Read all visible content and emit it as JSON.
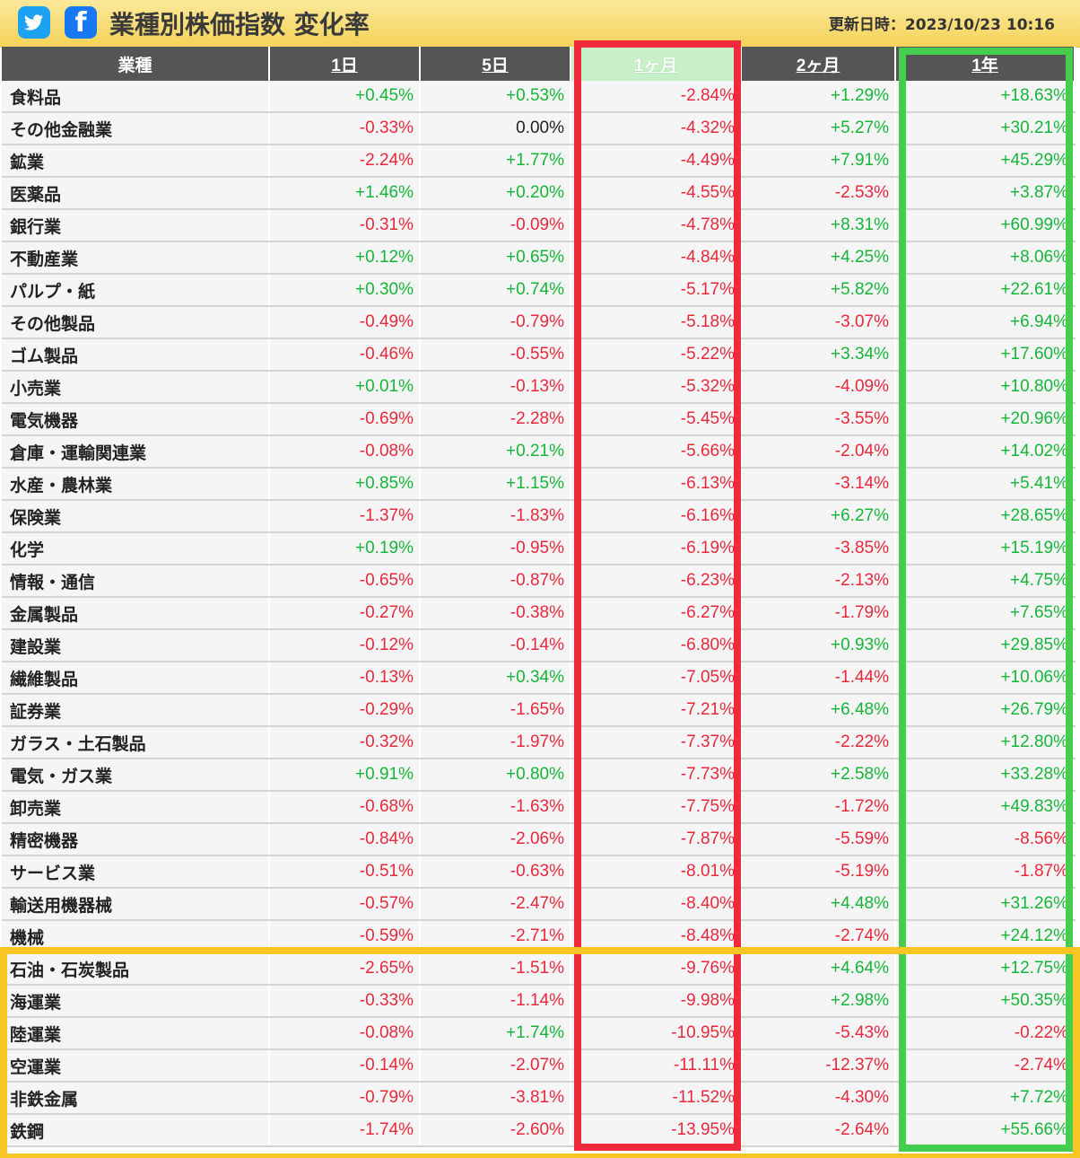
{
  "header": {
    "title": "業種別株価指数 変化率",
    "updated": "更新日時：2023/10/23 10:16"
  },
  "table": {
    "columns": [
      "業種",
      "1日",
      "5日",
      "1ヶ月",
      "2ヶ月",
      "1年"
    ],
    "active_sort_column": "1ヶ月",
    "rows": [
      [
        "食料品",
        "+0.45%",
        "+0.53%",
        "-2.84%",
        "+1.29%",
        "+18.63%"
      ],
      [
        "その他金融業",
        "-0.33%",
        "0.00%",
        "-4.32%",
        "+5.27%",
        "+30.21%"
      ],
      [
        "鉱業",
        "-2.24%",
        "+1.77%",
        "-4.49%",
        "+7.91%",
        "+45.29%"
      ],
      [
        "医薬品",
        "+1.46%",
        "+0.20%",
        "-4.55%",
        "-2.53%",
        "+3.87%"
      ],
      [
        "銀行業",
        "-0.31%",
        "-0.09%",
        "-4.78%",
        "+8.31%",
        "+60.99%"
      ],
      [
        "不動産業",
        "+0.12%",
        "+0.65%",
        "-4.84%",
        "+4.25%",
        "+8.06%"
      ],
      [
        "パルプ・紙",
        "+0.30%",
        "+0.74%",
        "-5.17%",
        "+5.82%",
        "+22.61%"
      ],
      [
        "その他製品",
        "-0.49%",
        "-0.79%",
        "-5.18%",
        "-3.07%",
        "+6.94%"
      ],
      [
        "ゴム製品",
        "-0.46%",
        "-0.55%",
        "-5.22%",
        "+3.34%",
        "+17.60%"
      ],
      [
        "小売業",
        "+0.01%",
        "-0.13%",
        "-5.32%",
        "-4.09%",
        "+10.80%"
      ],
      [
        "電気機器",
        "-0.69%",
        "-2.28%",
        "-5.45%",
        "-3.55%",
        "+20.96%"
      ],
      [
        "倉庫・運輸関連業",
        "-0.08%",
        "+0.21%",
        "-5.66%",
        "-2.04%",
        "+14.02%"
      ],
      [
        "水産・農林業",
        "+0.85%",
        "+1.15%",
        "-6.13%",
        "-3.14%",
        "+5.41%"
      ],
      [
        "保険業",
        "-1.37%",
        "-1.83%",
        "-6.16%",
        "+6.27%",
        "+28.65%"
      ],
      [
        "化学",
        "+0.19%",
        "-0.95%",
        "-6.19%",
        "-3.85%",
        "+15.19%"
      ],
      [
        "情報・通信",
        "-0.65%",
        "-0.87%",
        "-6.23%",
        "-2.13%",
        "+4.75%"
      ],
      [
        "金属製品",
        "-0.27%",
        "-0.38%",
        "-6.27%",
        "-1.79%",
        "+7.65%"
      ],
      [
        "建設業",
        "-0.12%",
        "-0.14%",
        "-6.80%",
        "+0.93%",
        "+29.85%"
      ],
      [
        "繊維製品",
        "-0.13%",
        "+0.34%",
        "-7.05%",
        "-1.44%",
        "+10.06%"
      ],
      [
        "証券業",
        "-0.29%",
        "-1.65%",
        "-7.21%",
        "+6.48%",
        "+26.79%"
      ],
      [
        "ガラス・土石製品",
        "-0.32%",
        "-1.97%",
        "-7.37%",
        "-2.22%",
        "+12.80%"
      ],
      [
        "電気・ガス業",
        "+0.91%",
        "+0.80%",
        "-7.73%",
        "+2.58%",
        "+33.28%"
      ],
      [
        "卸売業",
        "-0.68%",
        "-1.63%",
        "-7.75%",
        "-1.72%",
        "+49.83%"
      ],
      [
        "精密機器",
        "-0.84%",
        "-2.06%",
        "-7.87%",
        "-5.59%",
        "-8.56%"
      ],
      [
        "サービス業",
        "-0.51%",
        "-0.63%",
        "-8.01%",
        "-5.19%",
        "-1.87%"
      ],
      [
        "輸送用機器械",
        "-0.57%",
        "-2.47%",
        "-8.40%",
        "+4.48%",
        "+31.26%"
      ],
      [
        "機械",
        "-0.59%",
        "-2.71%",
        "-8.48%",
        "-2.74%",
        "+24.12%"
      ],
      [
        "石油・石炭製品",
        "-2.65%",
        "-1.51%",
        "-9.76%",
        "+4.64%",
        "+12.75%"
      ],
      [
        "海運業",
        "-0.33%",
        "-1.14%",
        "-9.98%",
        "+2.98%",
        "+50.35%"
      ],
      [
        "陸運業",
        "-0.08%",
        "+1.74%",
        "-10.95%",
        "-5.43%",
        "-0.22%"
      ],
      [
        "空運業",
        "-0.14%",
        "-2.07%",
        "-11.11%",
        "-12.37%",
        "-2.74%"
      ],
      [
        "非鉄金属",
        "-0.79%",
        "-3.81%",
        "-11.52%",
        "-4.30%",
        "+7.72%"
      ],
      [
        "鉄鋼",
        "-1.74%",
        "-2.60%",
        "-13.95%",
        "-2.64%",
        "+55.66%"
      ]
    ]
  },
  "colors": {
    "positive": "#16b53a",
    "negative": "#e8283c",
    "highlight_1month": "#ee2a3b",
    "highlight_1year": "#46cd50",
    "highlight_bottom_rows": "#f7c624"
  },
  "icons": [
    "twitter-icon",
    "facebook-icon"
  ]
}
